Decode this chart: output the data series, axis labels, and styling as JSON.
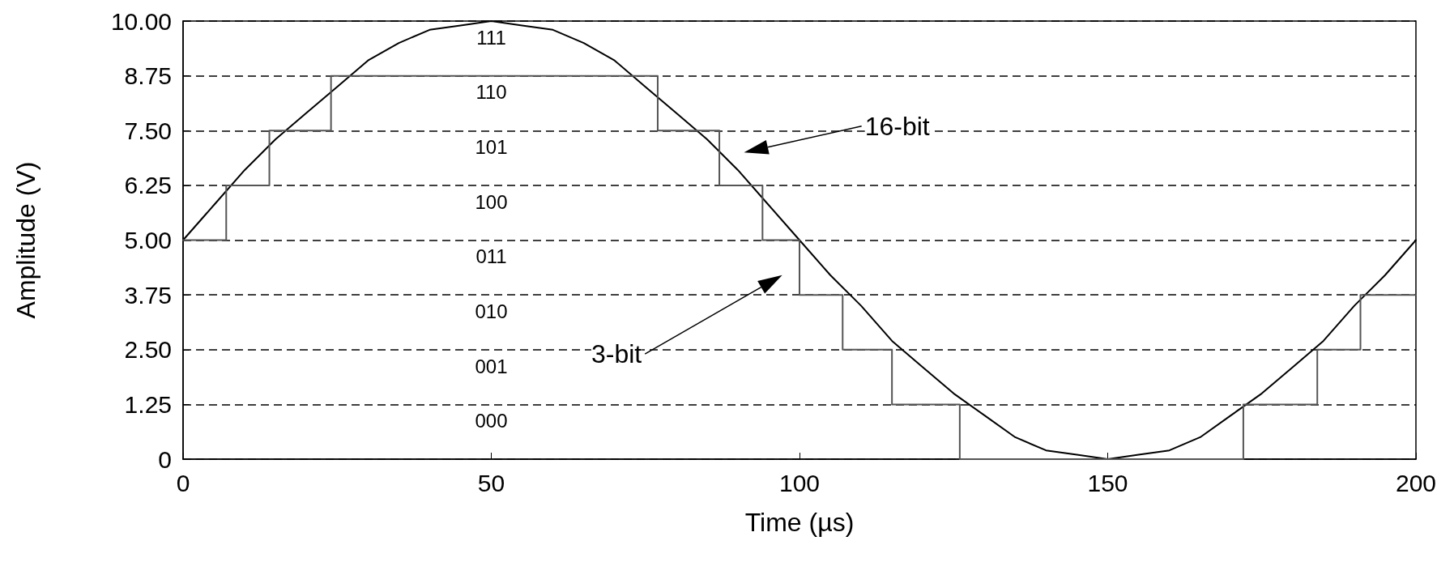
{
  "chart_data": {
    "type": "line",
    "xlabel": "Time (µs)",
    "ylabel": "Amplitude (V)",
    "xlim": [
      0,
      200
    ],
    "xticks": [
      0,
      50,
      100,
      150,
      200
    ],
    "ylim": [
      0,
      10
    ],
    "yticks": [
      0,
      1.25,
      {
        "value": 2.5,
        "label": "2.50"
      },
      3.75,
      {
        "value": 5,
        "label": "5.00"
      },
      6.25,
      {
        "value": 7.5,
        "label": "7.50"
      },
      8.75,
      {
        "value": 10,
        "label": "10.00"
      }
    ],
    "grid": "y",
    "marker": "none",
    "series": [
      {
        "type": "line",
        "color": "#000000",
        "x": [
          0,
          5,
          10,
          15,
          20,
          25,
          30,
          35,
          40,
          45,
          50,
          55,
          60,
          65,
          70,
          75,
          80,
          85,
          90,
          95,
          100,
          105,
          110,
          115,
          120,
          125,
          130,
          135,
          140,
          145,
          150,
          155,
          160,
          165,
          170,
          175,
          180,
          185,
          190,
          195,
          200
        ],
        "values": [
          5.0,
          5.8,
          6.6,
          7.3,
          7.9,
          8.5,
          9.1,
          9.5,
          9.8,
          9.9,
          10.0,
          9.9,
          9.8,
          9.5,
          9.1,
          8.5,
          7.9,
          7.3,
          6.6,
          5.8,
          5.0,
          4.2,
          3.5,
          2.7,
          2.1,
          1.5,
          1.0,
          0.5,
          0.2,
          0.1,
          0.0,
          0.1,
          0.2,
          0.5,
          1.0,
          1.5,
          2.1,
          2.7,
          3.5,
          4.2,
          5.0
        ]
      },
      {
        "type": "step",
        "color": "#555555",
        "x": [
          0,
          7,
          14,
          24,
          77,
          87,
          94,
          100,
          107,
          115,
          126,
          172,
          184,
          191,
          200
        ],
        "values": [
          5,
          6.25,
          7.5,
          8.75,
          7.5,
          6.25,
          5,
          3.75,
          2.5,
          1.25,
          0,
          1.25,
          2.5,
          3.75,
          3.75
        ]
      }
    ],
    "annotations": [
      "111",
      "110",
      "101",
      "100",
      "011",
      "010",
      "001",
      "000",
      "16-bit",
      "3-bit"
    ]
  }
}
